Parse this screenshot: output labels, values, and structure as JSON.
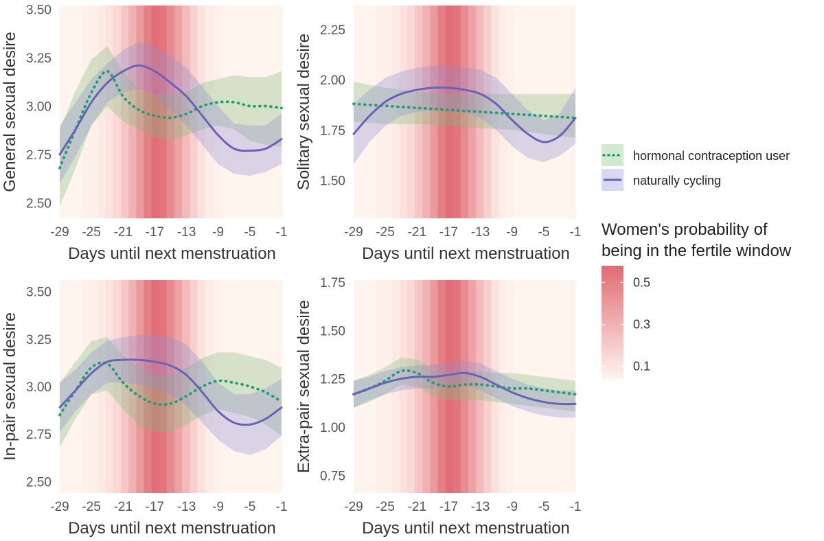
{
  "colors": {
    "hc_line": "#1f9e77",
    "hc_band": "#7fbf7b",
    "nc_line": "#6a62b5",
    "nc_band": "#8f8ed3",
    "fertile_low": "#fff4ee",
    "fertile_high": "#e06b74"
  },
  "legend": {
    "hc_label": "hormonal contraception user",
    "nc_label": "naturally cycling",
    "hc_icon": "dotted-line-icon",
    "nc_icon": "solid-line-icon",
    "fertile_title_line1": "Women's probability of",
    "fertile_title_line2": "being in the fertile window",
    "fertile_ticks": [
      "0.5",
      "0.3",
      "0.1"
    ],
    "fertile_tick_values": [
      0.5,
      0.3,
      0.1
    ],
    "fertile_range": [
      0.04,
      0.58
    ]
  },
  "fertile_probability": {
    "days": [
      -29,
      -28,
      -27,
      -26,
      -25,
      -24,
      -23,
      -22,
      -21,
      -20,
      -19,
      -18,
      -17,
      -16,
      -15,
      -14,
      -13,
      -12,
      -11,
      -10,
      -9,
      -8,
      -7,
      -6,
      -5,
      -4,
      -3,
      -2,
      -1
    ],
    "values": [
      0.04,
      0.04,
      0.04,
      0.05,
      0.06,
      0.08,
      0.11,
      0.15,
      0.22,
      0.3,
      0.4,
      0.5,
      0.57,
      0.54,
      0.45,
      0.36,
      0.27,
      0.18,
      0.11,
      0.07,
      0.05,
      0.04,
      0.04,
      0.04,
      0.04,
      0.04,
      0.04,
      0.04,
      0.04
    ]
  },
  "chart_data": [
    {
      "type": "line",
      "ylabel": "General sexual desire",
      "xlabel": "Days until next menstruation",
      "xlim": [
        -29,
        -1
      ],
      "xticks": [
        -29,
        -25,
        -21,
        -17,
        -13,
        -9,
        -5,
        -1
      ],
      "xtick_labels": [
        "-29",
        "-25",
        "-21",
        "-17",
        "-13",
        "-9",
        "-5",
        "-1"
      ],
      "ylim": [
        2.42,
        3.52
      ],
      "yticks": [
        2.5,
        2.75,
        3.0,
        3.25,
        3.5
      ],
      "ytick_labels": [
        "2.50",
        "2.75",
        "3.00",
        "3.25",
        "3.50"
      ],
      "series": [
        {
          "name": "hormonal contraception user",
          "x": [
            -29,
            -27,
            -25,
            -23,
            -21,
            -19,
            -17,
            -15,
            -13,
            -11,
            -9,
            -7,
            -5,
            -3,
            -1
          ],
          "y": [
            2.68,
            2.88,
            3.07,
            3.18,
            3.05,
            2.98,
            2.95,
            2.94,
            2.96,
            3.0,
            3.02,
            3.02,
            3.0,
            3.0,
            2.99
          ],
          "lower": [
            2.48,
            2.68,
            2.9,
            3.0,
            2.92,
            2.88,
            2.84,
            2.82,
            2.85,
            2.88,
            2.9,
            2.88,
            2.82,
            2.8,
            2.79
          ],
          "upper": [
            2.88,
            3.08,
            3.24,
            3.31,
            3.18,
            3.08,
            3.06,
            3.06,
            3.07,
            3.12,
            3.14,
            3.16,
            3.15,
            3.15,
            3.18
          ]
        },
        {
          "name": "naturally cycling",
          "x": [
            -29,
            -27,
            -25,
            -23,
            -21,
            -19,
            -17,
            -15,
            -13,
            -11,
            -9,
            -7,
            -5,
            -3,
            -1
          ],
          "y": [
            2.75,
            2.88,
            3.02,
            3.12,
            3.18,
            3.21,
            3.18,
            3.12,
            3.05,
            2.95,
            2.85,
            2.78,
            2.77,
            2.78,
            2.83
          ],
          "lower": [
            2.6,
            2.74,
            2.9,
            3.02,
            3.07,
            3.09,
            3.05,
            2.98,
            2.9,
            2.8,
            2.7,
            2.65,
            2.64,
            2.66,
            2.7
          ],
          "upper": [
            2.9,
            3.02,
            3.14,
            3.22,
            3.29,
            3.33,
            3.31,
            3.26,
            3.2,
            3.1,
            3.0,
            2.91,
            2.9,
            2.9,
            2.96
          ]
        }
      ]
    },
    {
      "type": "line",
      "ylabel": "Solitary sexual desire",
      "xlabel": "Days until next menstruation",
      "xlim": [
        -29,
        -1
      ],
      "xticks": [
        -29,
        -25,
        -21,
        -17,
        -13,
        -9,
        -5,
        -1
      ],
      "xtick_labels": [
        "-29",
        "-25",
        "-21",
        "-17",
        "-13",
        "-9",
        "-5",
        "-1"
      ],
      "ylim": [
        1.31,
        2.37
      ],
      "yticks": [
        1.5,
        1.75,
        2.0,
        2.25
      ],
      "ytick_labels": [
        "1.50",
        "1.75",
        "2.00",
        "2.25"
      ],
      "series": [
        {
          "name": "hormonal contraception user",
          "x": [
            -29,
            -25,
            -21,
            -17,
            -13,
            -9,
            -5,
            -1
          ],
          "y": [
            1.88,
            1.87,
            1.86,
            1.85,
            1.84,
            1.83,
            1.82,
            1.81
          ],
          "lower": [
            1.79,
            1.78,
            1.78,
            1.77,
            1.76,
            1.75,
            1.73,
            1.71
          ],
          "upper": [
            1.99,
            1.96,
            1.94,
            1.93,
            1.93,
            1.93,
            1.93,
            1.93
          ]
        },
        {
          "name": "naturally cycling",
          "x": [
            -29,
            -27,
            -25,
            -23,
            -21,
            -19,
            -17,
            -15,
            -13,
            -11,
            -9,
            -7,
            -5,
            -3,
            -1
          ],
          "y": [
            1.73,
            1.82,
            1.89,
            1.93,
            1.95,
            1.96,
            1.96,
            1.95,
            1.93,
            1.88,
            1.8,
            1.73,
            1.69,
            1.72,
            1.81
          ],
          "lower": [
            1.58,
            1.69,
            1.77,
            1.82,
            1.84,
            1.85,
            1.85,
            1.84,
            1.81,
            1.75,
            1.67,
            1.61,
            1.59,
            1.62,
            1.68
          ],
          "upper": [
            1.88,
            1.95,
            2.01,
            2.04,
            2.06,
            2.07,
            2.07,
            2.06,
            2.05,
            2.01,
            1.93,
            1.85,
            1.8,
            1.83,
            1.96
          ]
        }
      ]
    },
    {
      "type": "line",
      "ylabel": "In-pair sexual desire",
      "xlabel": "Days until next menstruation",
      "xlim": [
        -29,
        -1
      ],
      "xticks": [
        -29,
        -25,
        -21,
        -17,
        -13,
        -9,
        -5,
        -1
      ],
      "xtick_labels": [
        "-29",
        "-25",
        "-21",
        "-17",
        "-13",
        "-9",
        "-5",
        "-1"
      ],
      "ylim": [
        2.44,
        3.56
      ],
      "yticks": [
        2.5,
        2.75,
        3.0,
        3.25,
        3.5
      ],
      "ytick_labels": [
        "2.50",
        "2.75",
        "3.00",
        "3.25",
        "3.50"
      ],
      "series": [
        {
          "name": "hormonal contraception user",
          "x": [
            -29,
            -27,
            -25,
            -23,
            -21,
            -19,
            -17,
            -15,
            -13,
            -11,
            -9,
            -7,
            -5,
            -3,
            -1
          ],
          "y": [
            2.85,
            2.98,
            3.1,
            3.12,
            3.02,
            2.95,
            2.91,
            2.91,
            2.95,
            3.0,
            3.03,
            3.02,
            3.0,
            2.97,
            2.92
          ],
          "lower": [
            2.68,
            2.83,
            2.96,
            2.98,
            2.88,
            2.8,
            2.76,
            2.76,
            2.8,
            2.85,
            2.88,
            2.86,
            2.84,
            2.8,
            2.74
          ],
          "upper": [
            3.02,
            3.13,
            3.24,
            3.26,
            3.16,
            3.1,
            3.06,
            3.06,
            3.1,
            3.15,
            3.18,
            3.18,
            3.16,
            3.14,
            3.1
          ]
        },
        {
          "name": "naturally cycling",
          "x": [
            -29,
            -27,
            -25,
            -23,
            -21,
            -19,
            -17,
            -15,
            -13,
            -11,
            -9,
            -7,
            -5,
            -3,
            -1
          ],
          "y": [
            2.89,
            2.98,
            3.07,
            3.13,
            3.14,
            3.14,
            3.13,
            3.11,
            3.06,
            2.97,
            2.87,
            2.81,
            2.8,
            2.83,
            2.89
          ],
          "lower": [
            2.76,
            2.87,
            2.96,
            3.02,
            3.02,
            3.01,
            2.99,
            2.96,
            2.9,
            2.81,
            2.72,
            2.66,
            2.64,
            2.67,
            2.74
          ],
          "upper": [
            3.02,
            3.09,
            3.18,
            3.24,
            3.26,
            3.27,
            3.27,
            3.26,
            3.22,
            3.13,
            3.02,
            2.96,
            2.96,
            2.99,
            3.04
          ]
        }
      ]
    },
    {
      "type": "line",
      "ylabel": "Extra-pair sexual desire",
      "xlabel": "Days until next menstruation",
      "xlim": [
        -29,
        -1
      ],
      "xticks": [
        -29,
        -25,
        -21,
        -17,
        -13,
        -9,
        -5,
        -1
      ],
      "xtick_labels": [
        "-29",
        "-25",
        "-21",
        "-17",
        "-13",
        "-9",
        "-5",
        "-1"
      ],
      "ylim": [
        0.66,
        1.76
      ],
      "yticks": [
        0.75,
        1.0,
        1.25,
        1.5,
        1.75
      ],
      "ytick_labels": [
        "0.75",
        "1.00",
        "1.25",
        "1.50",
        "1.75"
      ],
      "series": [
        {
          "name": "hormonal contraception user",
          "x": [
            -29,
            -27,
            -25,
            -23,
            -21,
            -19,
            -17,
            -15,
            -13,
            -11,
            -9,
            -7,
            -5,
            -3,
            -1
          ],
          "y": [
            1.17,
            1.2,
            1.24,
            1.29,
            1.28,
            1.23,
            1.21,
            1.22,
            1.22,
            1.21,
            1.2,
            1.2,
            1.19,
            1.18,
            1.17
          ],
          "lower": [
            1.1,
            1.13,
            1.17,
            1.22,
            1.21,
            1.16,
            1.14,
            1.14,
            1.14,
            1.13,
            1.12,
            1.11,
            1.1,
            1.09,
            1.08
          ],
          "upper": [
            1.24,
            1.27,
            1.31,
            1.36,
            1.35,
            1.3,
            1.28,
            1.29,
            1.29,
            1.28,
            1.28,
            1.27,
            1.26,
            1.25,
            1.24
          ]
        },
        {
          "name": "naturally cycling",
          "x": [
            -29,
            -27,
            -25,
            -23,
            -21,
            -19,
            -17,
            -15,
            -13,
            -11,
            -9,
            -7,
            -5,
            -3,
            -1
          ],
          "y": [
            1.17,
            1.2,
            1.23,
            1.25,
            1.26,
            1.26,
            1.27,
            1.28,
            1.26,
            1.22,
            1.18,
            1.15,
            1.13,
            1.12,
            1.12
          ],
          "lower": [
            1.1,
            1.14,
            1.17,
            1.19,
            1.2,
            1.2,
            1.21,
            1.22,
            1.19,
            1.15,
            1.11,
            1.08,
            1.06,
            1.05,
            1.05
          ],
          "upper": [
            1.24,
            1.26,
            1.29,
            1.31,
            1.32,
            1.32,
            1.33,
            1.34,
            1.33,
            1.29,
            1.25,
            1.22,
            1.2,
            1.19,
            1.19
          ]
        }
      ]
    }
  ]
}
